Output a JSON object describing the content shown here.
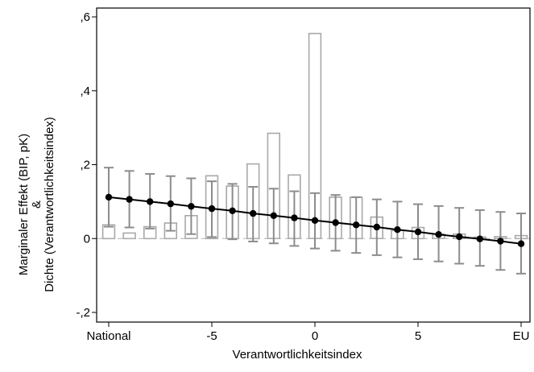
{
  "chart_data": {
    "type": "line",
    "xlabel": "Verantwortlichkeitsindex",
    "ylabel_line1": "Marginaler Effekt (BIP, pK)",
    "ylabel_line2": "&",
    "ylabel_line3": "Dichte (Verantwortlichkeitsindex)",
    "xlim": [
      -10,
      10
    ],
    "ylim": [
      -0.2,
      0.6
    ],
    "x_ticks": [
      {
        "value": -10,
        "label": "National"
      },
      {
        "value": -5,
        "label": "-5"
      },
      {
        "value": 0,
        "label": "0"
      },
      {
        "value": 5,
        "label": "5"
      },
      {
        "value": 10,
        "label": "EU"
      }
    ],
    "y_ticks": [
      {
        "value": -0.2,
        "label": "-,2"
      },
      {
        "value": 0,
        "label": "0"
      },
      {
        "value": 0.2,
        "label": ",2"
      },
      {
        "value": 0.4,
        "label": ",4"
      },
      {
        "value": 0.6,
        "label": ",6"
      }
    ],
    "series": [
      {
        "kind": "density_bars",
        "x": [
          -10,
          -9,
          -8,
          -7,
          -6,
          -5,
          -4,
          -3,
          -2,
          -1,
          0,
          1,
          2,
          3,
          4,
          5,
          6,
          7,
          8,
          9,
          10
        ],
        "values": [
          0.037,
          0.015,
          0.032,
          0.042,
          0.062,
          0.17,
          0.142,
          0.202,
          0.285,
          0.172,
          0.555,
          0.112,
          0.112,
          0.058,
          0.022,
          0.03,
          0.012,
          0.012,
          0.004,
          0.005,
          0.008
        ]
      },
      {
        "kind": "marginal_effect",
        "x": [
          -10,
          -9,
          -8,
          -7,
          -6,
          -5,
          -4,
          -3,
          -2,
          -1,
          0,
          1,
          2,
          3,
          4,
          5,
          6,
          7,
          8,
          9,
          10
        ],
        "values": [
          0.112,
          0.106,
          0.1,
          0.094,
          0.087,
          0.081,
          0.075,
          0.068,
          0.062,
          0.056,
          0.049,
          0.043,
          0.037,
          0.031,
          0.024,
          0.018,
          0.011,
          0.005,
          -0.001,
          -0.007,
          -0.014
        ],
        "ci_lower": [
          0.032,
          0.03,
          0.027,
          0.021,
          0.012,
          0.004,
          -0.002,
          -0.008,
          -0.013,
          -0.02,
          -0.027,
          -0.033,
          -0.039,
          -0.045,
          -0.051,
          -0.056,
          -0.062,
          -0.068,
          -0.074,
          -0.085,
          -0.095
        ],
        "ci_upper": [
          0.192,
          0.183,
          0.175,
          0.169,
          0.163,
          0.155,
          0.148,
          0.14,
          0.135,
          0.128,
          0.123,
          0.118,
          0.112,
          0.106,
          0.1,
          0.093,
          0.088,
          0.083,
          0.077,
          0.072,
          0.068
        ]
      }
    ],
    "colors": {
      "density": "#a8a8a8",
      "ci": "#8c8c8c",
      "line": "#000000",
      "axis": "#000000"
    },
    "grid": false,
    "legend": "none"
  }
}
